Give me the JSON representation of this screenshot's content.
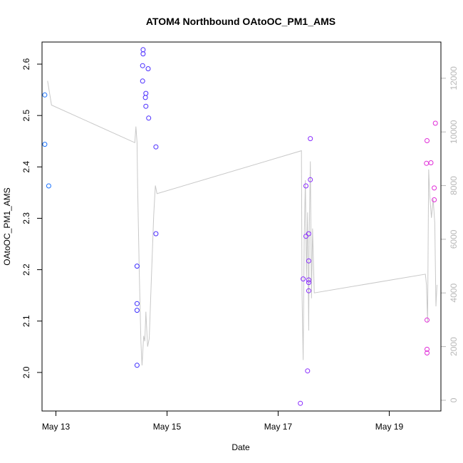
{
  "chart_data": {
    "type": "scatter",
    "title": "ATOM4 Northbound OAtoOC_PM1_AMS",
    "xlabel": "Date",
    "ylabel": "OAtoOC_PM1_AMS",
    "xlim": [
      12.75,
      19.93
    ],
    "ylim": [
      1.925,
      2.643
    ],
    "x_ticks": [
      {
        "value": 13,
        "label": "May 13"
      },
      {
        "value": 15,
        "label": "May 15"
      },
      {
        "value": 17,
        "label": "May 17"
      },
      {
        "value": 19,
        "label": "May 19"
      }
    ],
    "y_ticks": [
      2.0,
      2.1,
      2.2,
      2.3,
      2.4,
      2.5,
      2.6
    ],
    "secondary_axis": {
      "ylim": [
        -400,
        13350
      ],
      "ticks": [
        0,
        2000,
        4000,
        6000,
        8000,
        10000,
        12000
      ],
      "color": "#b8b8b8"
    },
    "points": [
      {
        "x": 12.8,
        "y": 2.54,
        "color": "#1a73ff"
      },
      {
        "x": 12.8,
        "y": 2.444,
        "color": "#1a73ff"
      },
      {
        "x": 12.87,
        "y": 2.363,
        "color": "#1a73ff"
      },
      {
        "x": 14.46,
        "y": 2.207,
        "color": "#3b2cff"
      },
      {
        "x": 14.46,
        "y": 2.134,
        "color": "#3b2cff"
      },
      {
        "x": 14.46,
        "y": 2.121,
        "color": "#3b2cff"
      },
      {
        "x": 14.46,
        "y": 2.014,
        "color": "#3b2cff"
      },
      {
        "x": 14.57,
        "y": 2.628,
        "color": "#4a2cff"
      },
      {
        "x": 14.57,
        "y": 2.62,
        "color": "#4a2cff"
      },
      {
        "x": 14.56,
        "y": 2.597,
        "color": "#4a2cff"
      },
      {
        "x": 14.66,
        "y": 2.591,
        "color": "#4a2cff"
      },
      {
        "x": 14.56,
        "y": 2.567,
        "color": "#4a2cff"
      },
      {
        "x": 14.62,
        "y": 2.543,
        "color": "#4a2cff"
      },
      {
        "x": 14.61,
        "y": 2.535,
        "color": "#4a2cff"
      },
      {
        "x": 14.62,
        "y": 2.518,
        "color": "#4a2cff"
      },
      {
        "x": 14.67,
        "y": 2.495,
        "color": "#4a2cff"
      },
      {
        "x": 14.8,
        "y": 2.439,
        "color": "#4a2cff"
      },
      {
        "x": 14.8,
        "y": 2.27,
        "color": "#4a2cff"
      },
      {
        "x": 17.4,
        "y": 1.94,
        "color": "#8a2cff"
      },
      {
        "x": 17.45,
        "y": 2.182,
        "color": "#8a2cff"
      },
      {
        "x": 17.5,
        "y": 2.363,
        "color": "#8a2cff"
      },
      {
        "x": 17.5,
        "y": 2.265,
        "color": "#8a2cff"
      },
      {
        "x": 17.55,
        "y": 2.27,
        "color": "#8a2cff"
      },
      {
        "x": 17.55,
        "y": 2.217,
        "color": "#8a2cff"
      },
      {
        "x": 17.55,
        "y": 2.18,
        "color": "#8a2cff"
      },
      {
        "x": 17.55,
        "y": 2.175,
        "color": "#8a2cff"
      },
      {
        "x": 17.55,
        "y": 2.159,
        "color": "#8a2cff"
      },
      {
        "x": 17.53,
        "y": 2.003,
        "color": "#8a2cff"
      },
      {
        "x": 17.58,
        "y": 2.455,
        "color": "#8a2cff"
      },
      {
        "x": 17.58,
        "y": 2.375,
        "color": "#8a2cff"
      },
      {
        "x": 19.68,
        "y": 2.451,
        "color": "#e02cd8"
      },
      {
        "x": 19.67,
        "y": 2.407,
        "color": "#e02cd8"
      },
      {
        "x": 19.75,
        "y": 2.408,
        "color": "#e02cd8"
      },
      {
        "x": 19.83,
        "y": 2.485,
        "color": "#e02cd8"
      },
      {
        "x": 19.81,
        "y": 2.359,
        "color": "#e02cd8"
      },
      {
        "x": 19.81,
        "y": 2.336,
        "color": "#e02cd8"
      },
      {
        "x": 19.68,
        "y": 2.102,
        "color": "#e02cd8"
      },
      {
        "x": 19.68,
        "y": 2.045,
        "color": "#e02cd8"
      },
      {
        "x": 19.68,
        "y": 2.038,
        "color": "#e02cd8"
      }
    ],
    "secondary_line": {
      "color": "#c8c8c8",
      "x": [
        12.85,
        12.92,
        14.42,
        14.44,
        14.46,
        14.47,
        14.5,
        14.53,
        14.55,
        14.58,
        14.6,
        14.62,
        14.65,
        14.68,
        14.72,
        14.76,
        14.79,
        14.82,
        17.42,
        17.43,
        17.45,
        17.47,
        17.49,
        17.51,
        17.53,
        17.55,
        17.56,
        17.58,
        17.6,
        17.62,
        17.65,
        19.65,
        19.67,
        19.69,
        19.71,
        19.73,
        19.76,
        19.79,
        19.82,
        19.84,
        19.86
      ],
      "y": [
        11900,
        11000,
        9600,
        10200,
        9600,
        8000,
        4800,
        2200,
        1300,
        2400,
        2200,
        3300,
        2000,
        2300,
        4600,
        6900,
        8000,
        7700,
        9300,
        4000,
        1500,
        6000,
        8200,
        4500,
        7000,
        2600,
        6200,
        8900,
        3800,
        6400,
        4000,
        4700,
        4300,
        2900,
        8600,
        7600,
        6800,
        7500,
        6600,
        3500,
        4300
      ]
    }
  }
}
